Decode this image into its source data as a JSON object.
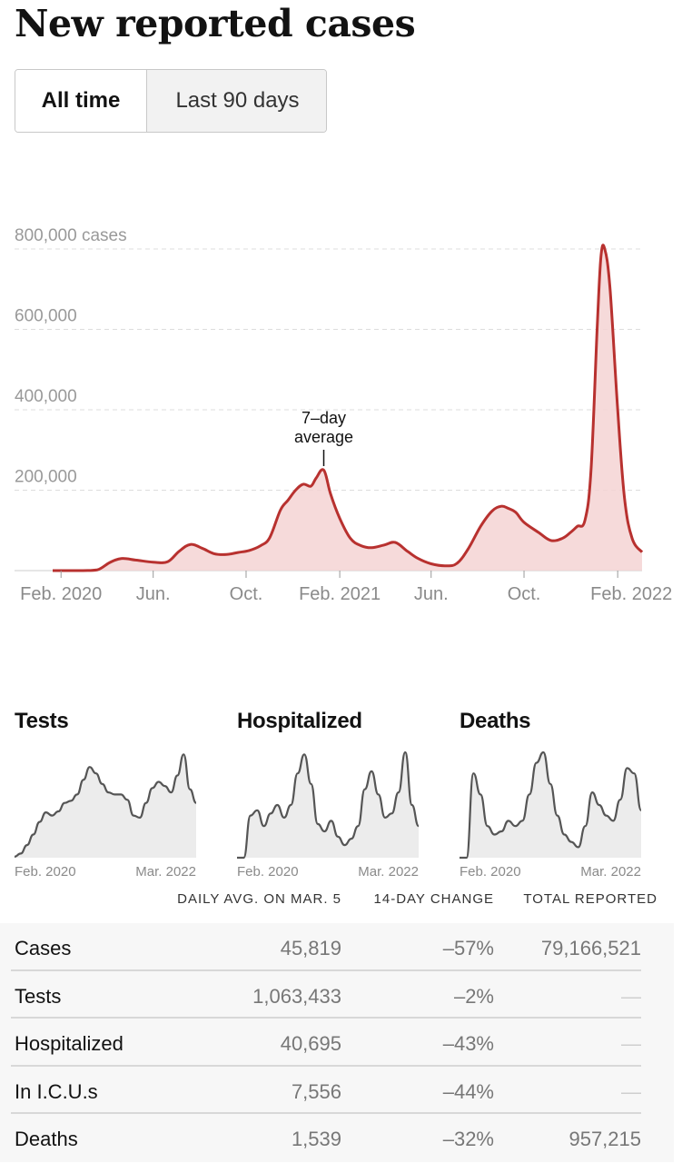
{
  "title": "New reported cases",
  "toggle": {
    "options": [
      "All time",
      "Last 90 days"
    ],
    "selected": "All time"
  },
  "colors": {
    "accent": "#b8312f",
    "fill": "#f5d4d4",
    "grid": "#dddddd",
    "mini_line": "#555555",
    "mini_fill": "#ececec"
  },
  "chart_data": [
    {
      "type": "area",
      "title": "New reported cases",
      "y_tick_labels": [
        "200,000",
        "400,000",
        "600,000",
        "800,000 cases"
      ],
      "y_ticks": [
        200000,
        400000,
        600000,
        800000
      ],
      "ylim": [
        0,
        800000
      ],
      "x_tick_labels": [
        "Feb. 2020",
        "Jun.",
        "Oct.",
        "Feb. 2021",
        "Jun.",
        "Oct.",
        "Feb. 2022"
      ],
      "x_ticks": [
        "2020-02-01",
        "2020-06-01",
        "2020-10-01",
        "2021-02-01",
        "2021-06-01",
        "2021-10-01",
        "2022-02-01"
      ],
      "x_range": [
        "2020-01-21",
        "2022-03-05"
      ],
      "annotation": {
        "text_line1": "7–day",
        "text_line2": "average",
        "x": "2021-01-11"
      },
      "grid": true,
      "series": [
        {
          "x": [
            "2020-01-21",
            "2020-03-01",
            "2020-03-20",
            "2020-04-05",
            "2020-04-20",
            "2020-05-10",
            "2020-06-01",
            "2020-06-20",
            "2020-07-05",
            "2020-07-20",
            "2020-08-05",
            "2020-08-20",
            "2020-09-05",
            "2020-09-20",
            "2020-10-05",
            "2020-10-20",
            "2020-11-01",
            "2020-11-15",
            "2020-11-25",
            "2020-12-05",
            "2020-12-15",
            "2020-12-25",
            "2021-01-01",
            "2021-01-11",
            "2021-01-20",
            "2021-02-01",
            "2021-02-15",
            "2021-03-01",
            "2021-03-15",
            "2021-04-01",
            "2021-04-15",
            "2021-05-01",
            "2021-05-15",
            "2021-06-01",
            "2021-06-20",
            "2021-07-05",
            "2021-07-20",
            "2021-08-05",
            "2021-08-20",
            "2021-09-01",
            "2021-09-10",
            "2021-09-20",
            "2021-10-01",
            "2021-10-20",
            "2021-11-05",
            "2021-11-20",
            "2021-12-01",
            "2021-12-10",
            "2021-12-20",
            "2021-12-28",
            "2022-01-05",
            "2022-01-10",
            "2022-01-15",
            "2022-01-22",
            "2022-02-01",
            "2022-02-10",
            "2022-02-20",
            "2022-03-05"
          ],
          "values": [
            0,
            0,
            2000,
            20000,
            30000,
            26000,
            21000,
            22000,
            48000,
            65000,
            55000,
            42000,
            40000,
            45000,
            50000,
            62000,
            82000,
            150000,
            175000,
            200000,
            215000,
            210000,
            230000,
            250000,
            190000,
            130000,
            80000,
            62000,
            57000,
            64000,
            70000,
            48000,
            30000,
            17000,
            12000,
            18000,
            55000,
            110000,
            148000,
            160000,
            155000,
            145000,
            120000,
            95000,
            75000,
            80000,
            95000,
            110000,
            125000,
            250000,
            600000,
            780000,
            800000,
            700000,
            400000,
            180000,
            80000,
            45819
          ]
        }
      ]
    },
    {
      "type": "area",
      "title": "Tests",
      "x_tick_labels": [
        "Feb. 2020",
        "Mar. 2022"
      ],
      "series": [
        {
          "values": [
            0.01,
            0.04,
            0.12,
            0.22,
            0.34,
            0.43,
            0.4,
            0.44,
            0.52,
            0.54,
            0.6,
            0.74,
            0.86,
            0.8,
            0.7,
            0.62,
            0.6,
            0.6,
            0.55,
            0.4,
            0.38,
            0.52,
            0.66,
            0.72,
            0.68,
            0.62,
            0.78,
            0.98,
            0.65,
            0.52
          ]
        }
      ]
    },
    {
      "type": "area",
      "title": "Hospitalized",
      "x_tick_labels": [
        "Feb. 2020",
        "Mar. 2022"
      ],
      "series": [
        {
          "values": [
            0.0,
            0.0,
            0.4,
            0.45,
            0.3,
            0.42,
            0.5,
            0.38,
            0.5,
            0.8,
            0.98,
            0.7,
            0.32,
            0.25,
            0.35,
            0.2,
            0.12,
            0.18,
            0.3,
            0.65,
            0.82,
            0.6,
            0.38,
            0.42,
            0.62,
            1.0,
            0.5,
            0.3
          ]
        }
      ]
    },
    {
      "type": "area",
      "title": "Deaths",
      "x_tick_labels": [
        "Feb. 2020",
        "Mar. 2022"
      ],
      "series": [
        {
          "values": [
            0.0,
            0.0,
            0.8,
            0.6,
            0.3,
            0.22,
            0.25,
            0.35,
            0.3,
            0.35,
            0.6,
            0.9,
            1.0,
            0.7,
            0.4,
            0.22,
            0.15,
            0.1,
            0.3,
            0.62,
            0.5,
            0.4,
            0.35,
            0.55,
            0.85,
            0.8,
            0.45
          ]
        }
      ]
    }
  ],
  "table": {
    "headers": [
      "DAILY AVG. ON MAR. 5",
      "14-DAY CHANGE",
      "TOTAL REPORTED"
    ],
    "rows": [
      {
        "metric": "Cases",
        "daily": "45,819",
        "change": "–57%",
        "total": "79,166,521"
      },
      {
        "metric": "Tests",
        "daily": "1,063,433",
        "change": "–2%",
        "total": "—"
      },
      {
        "metric": "Hospitalized",
        "daily": "40,695",
        "change": "–43%",
        "total": "—"
      },
      {
        "metric": "In I.C.U.s",
        "daily": "7,556",
        "change": "–44%",
        "total": "—"
      },
      {
        "metric": "Deaths",
        "daily": "1,539",
        "change": "–32%",
        "total": "957,215"
      }
    ]
  }
}
